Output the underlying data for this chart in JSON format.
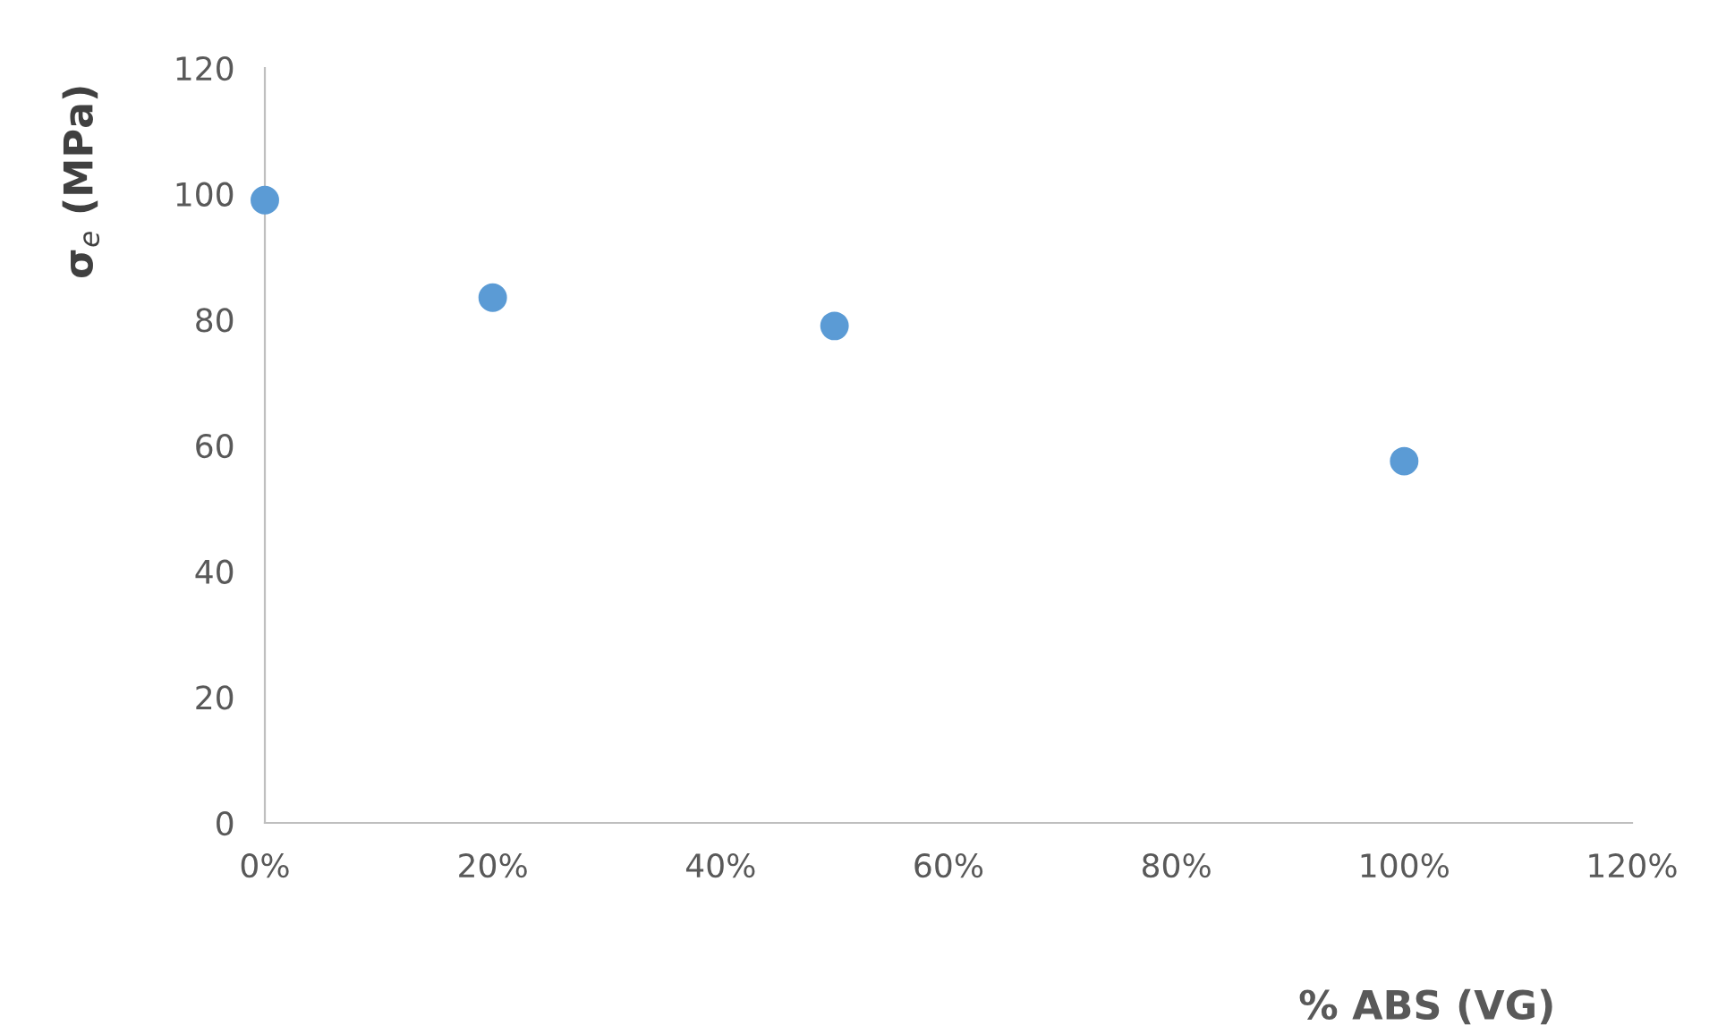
{
  "chart_data": {
    "type": "scatter",
    "xlabel": "% ABS (VG)",
    "ylabel": "σ$_{e}$ (MPa)",
    "x": [
      0,
      0.2,
      0.5,
      1.0
    ],
    "series": [
      {
        "color": "#5b9bd5",
        "values": [
          99,
          83.5,
          79,
          57.5
        ]
      }
    ],
    "xlim": [
      0,
      1.2
    ],
    "ylim": [
      0,
      120
    ],
    "xticks": [
      {
        "value": 0,
        "label": "0%"
      },
      {
        "value": 0.2,
        "label": "20%"
      },
      {
        "value": 0.4,
        "label": "40%"
      },
      {
        "value": 0.6,
        "label": "60%"
      },
      {
        "value": 0.8,
        "label": "80%"
      },
      {
        "value": 1.0,
        "label": "100%"
      },
      {
        "value": 1.2,
        "label": "120%"
      }
    ],
    "yticks": [
      0,
      20,
      40,
      60,
      80,
      100,
      120
    ],
    "grid": false,
    "marker": "circle"
  }
}
